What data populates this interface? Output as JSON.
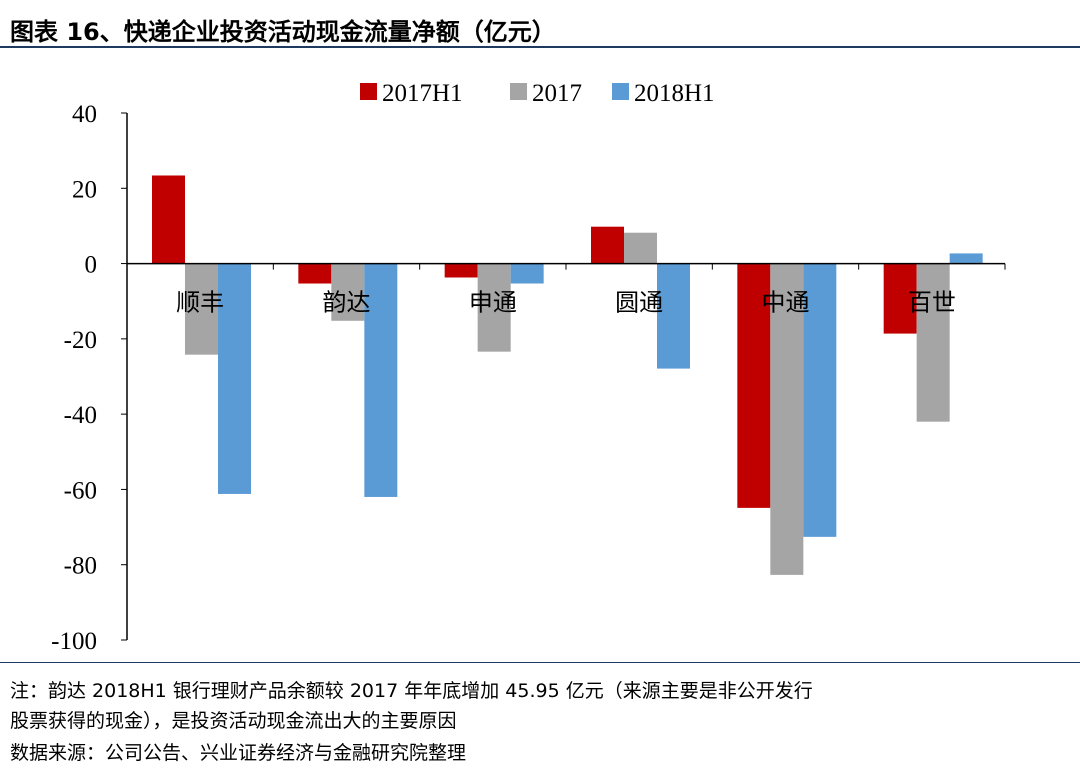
{
  "title": "图表 16、快递企业投资活动现金流量净额（亿元）",
  "notes": [
    "注：韵达 2018H1 银行理财产品余额较 2017 年年底增加 45.95 亿元（来源主要是非公开发行",
    "股票获得的现金），是投资活动现金流出大的主要原因",
    "数据来源：公司公告、兴业证券经济与金融研究院整理"
  ],
  "chart_data": {
    "type": "bar",
    "categories": [
      "顺丰",
      "韵达",
      "申通",
      "圆通",
      "中通",
      "百世"
    ],
    "series": [
      {
        "name": "2017H1",
        "color": "#c00000",
        "values": [
          23.4,
          -5.3,
          -3.7,
          9.8,
          -64.9,
          -18.6
        ]
      },
      {
        "name": "2017",
        "color": "#a5a5a5",
        "values": [
          -24.2,
          -15.2,
          -23.4,
          8.2,
          -82.7,
          -42.0
        ]
      },
      {
        "name": "2018H1",
        "color": "#5b9bd5",
        "values": [
          -61.2,
          -62.0,
          -5.3,
          -27.9,
          -72.6,
          2.7
        ]
      }
    ],
    "ylim": [
      -100,
      40
    ],
    "yticks": [
      40,
      20,
      0,
      -20,
      -40,
      -60,
      -80,
      -100
    ],
    "grid": false,
    "legend": "top-center"
  }
}
